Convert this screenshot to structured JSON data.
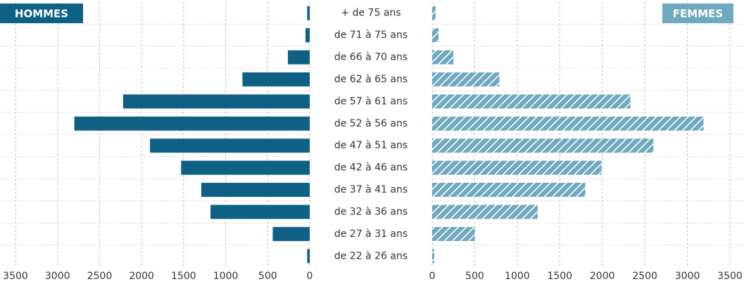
{
  "chart_data": {
    "type": "bar",
    "orientation": "horizontal",
    "categories": [
      "+ de 75 ans",
      "de 71 à 75 ans",
      "de 66 à 70 ans",
      "de 62 à 65 ans",
      "de 57 à 61 ans",
      "de 52 à 56 ans",
      "de 47 à 51 ans",
      "de 42 à 46 ans",
      "de 37 à 41 ans",
      "de 32 à 36 ans",
      "de 27 à 31 ans",
      "de 22 à 26 ans"
    ],
    "series": [
      {
        "name": "HOMMES",
        "color": "#0e6185",
        "values": [
          30,
          50,
          260,
          800,
          2220,
          2800,
          1900,
          1530,
          1290,
          1180,
          440,
          30
        ]
      },
      {
        "name": "FEMMES",
        "color": "#6fa9bd",
        "values": [
          40,
          75,
          250,
          790,
          2330,
          3190,
          2600,
          1990,
          1800,
          1240,
          500,
          25
        ]
      }
    ],
    "xlim": [
      0,
      3500
    ],
    "xticks": [
      0,
      500,
      1000,
      1500,
      2000,
      2500,
      3000,
      3500
    ],
    "grid": true
  }
}
